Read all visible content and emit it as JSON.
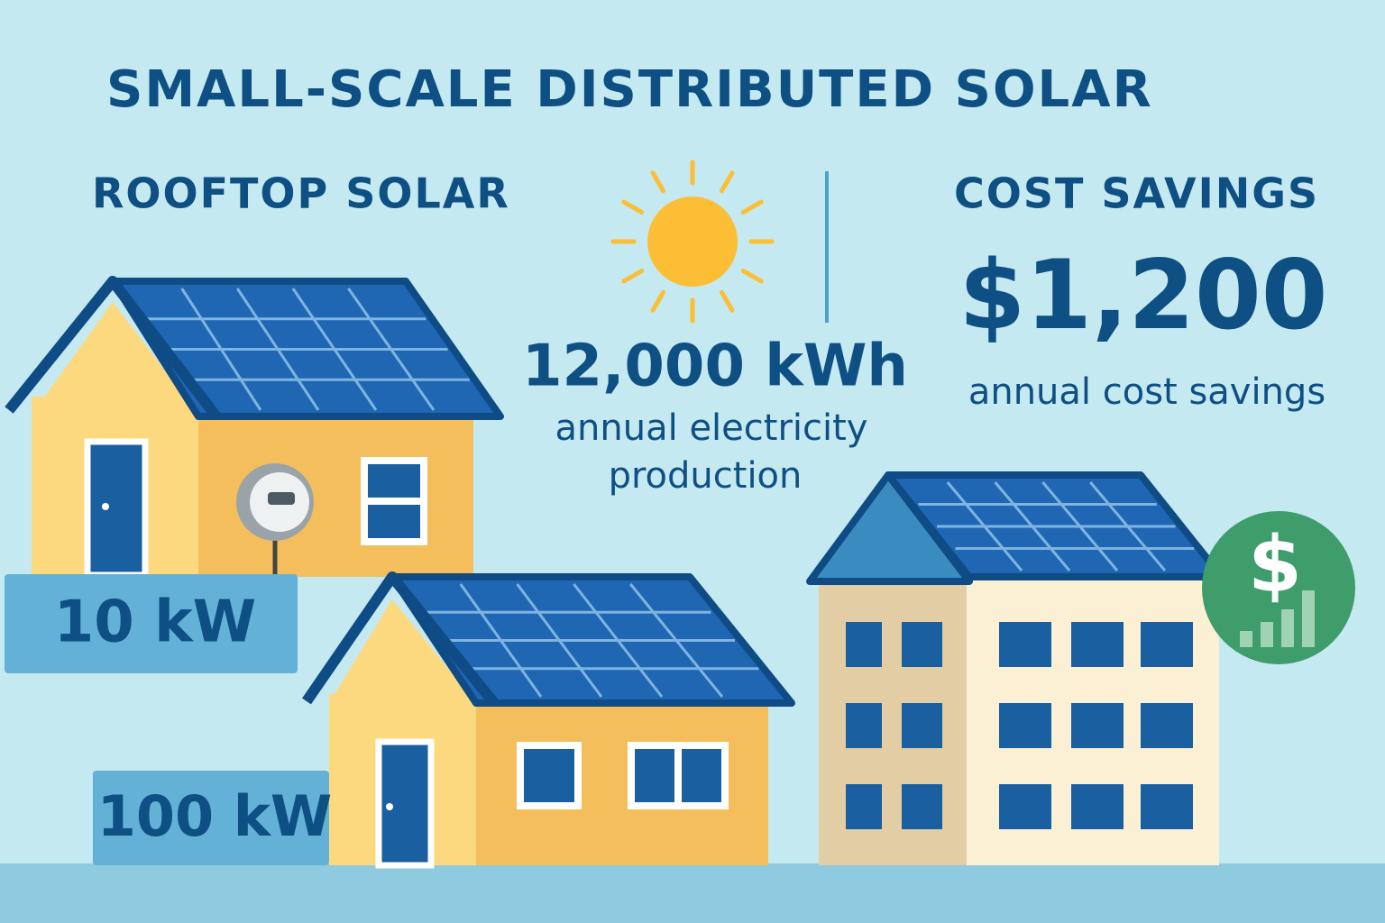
{
  "header": {
    "title": "SMALL-SCALE DISTRIBUTED SOLAR"
  },
  "rooftop": {
    "heading": "ROOFTOP SOLAR",
    "small_label": "10 kW",
    "large_label": "100 kW"
  },
  "production": {
    "value": "12,000 kWh",
    "description_line1": "annual electricity",
    "description_line2": "production"
  },
  "savings": {
    "heading": "COST SAVINGS",
    "amount": "$1,200",
    "description": "annual cost savings",
    "icon": "$"
  }
}
